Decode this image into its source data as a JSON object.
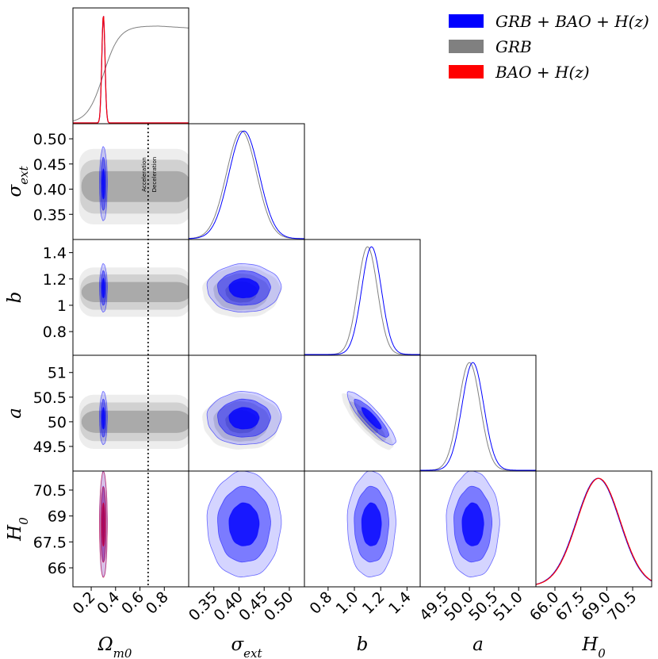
{
  "chart_data": {
    "type": "triangle-corner-plot",
    "parameters": [
      {
        "id": "om",
        "sym": "Ω",
        "sub": "m0",
        "range": [
          0.05,
          1.0
        ],
        "ticks": [
          0.2,
          0.4,
          0.6,
          0.8
        ],
        "tick_labels": [
          "0.2",
          "0.4",
          "0.6",
          "0.8"
        ]
      },
      {
        "id": "sig",
        "sym": "σ",
        "sub": "ext",
        "range": [
          0.3,
          0.53
        ],
        "ticks": [
          0.35,
          0.4,
          0.45,
          0.5
        ],
        "tick_labels": [
          "0.35",
          "0.40",
          "0.45",
          "0.50"
        ]
      },
      {
        "id": "b",
        "sym": "b",
        "sub": "",
        "range": [
          0.62,
          1.5
        ],
        "ticks": [
          0.8,
          1.0,
          1.2,
          1.4
        ],
        "tick_labels": [
          "0.8",
          "1.0",
          "1.2",
          "1.4"
        ],
        "ytick_labels": [
          "0.8",
          "1",
          "1.2",
          "1.4"
        ]
      },
      {
        "id": "a",
        "sym": "a",
        "sub": "",
        "range": [
          49.0,
          51.35
        ],
        "ticks": [
          49.5,
          50.0,
          50.5,
          51.0
        ],
        "tick_labels": [
          "49.5",
          "50.0",
          "50.5",
          "51.0"
        ],
        "ytick_labels": [
          "49.5",
          "50",
          "50.5",
          "51"
        ]
      },
      {
        "id": "h0",
        "sym": "H",
        "sub": "0",
        "range": [
          64.9,
          71.6
        ],
        "ticks": [
          66.0,
          67.5,
          69.0,
          70.5
        ],
        "tick_labels": [
          "66.0",
          "67.5",
          "69.0",
          "70.5"
        ],
        "ytick_labels": [
          "66",
          "67.5",
          "69",
          "70.5"
        ]
      }
    ],
    "series": [
      {
        "name": "GRB + BAO + H(z)",
        "color": "#0000ff",
        "mean": {
          "om": 0.3,
          "sig": 0.41,
          "b": 1.13,
          "a": 50.07,
          "h0": 68.5
        },
        "sd": {
          "om": 0.013,
          "sig": 0.03,
          "b": 0.075,
          "a": 0.22,
          "h0": 1.25
        },
        "corr_ab": -0.88
      },
      {
        "name": "GRB",
        "color": "#808080",
        "mean": {
          "om": 0.6,
          "sig": 0.405,
          "b": 1.1,
          "a": 50.0,
          "h0": 68.5
        },
        "sd": {
          "om": 0.3,
          "sig": 0.03,
          "b": 0.075,
          "a": 0.22,
          "h0": 1.25
        },
        "corr_ab": -0.88
      },
      {
        "name": "BAO + H(z)",
        "color": "#ff0000",
        "mean": {
          "om": 0.3,
          "h0": 68.5
        },
        "sd": {
          "om": 0.013,
          "h0": 1.25
        }
      }
    ],
    "legend": [
      {
        "label": "GRB + BAO + H(z)",
        "color": "#0000ff"
      },
      {
        "label": "GRB",
        "color": "#808080"
      },
      {
        "label": "BAO + H(z)",
        "color": "#ff0000"
      }
    ],
    "legend_position": "top-right",
    "vline": {
      "param": "om",
      "value": 0.667,
      "style": "dotted"
    },
    "annotations": [
      "Acceleration",
      "Deceleration"
    ]
  }
}
